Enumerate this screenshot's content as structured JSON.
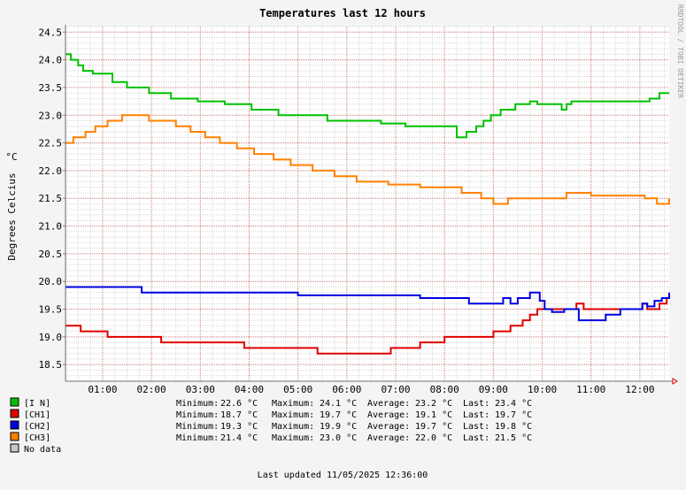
{
  "chart_data": {
    "type": "line",
    "title": "Temperatures last 12 hours",
    "ylabel": "Degrees Celcius",
    "yunit": "°C",
    "watermark": "RRDTOOL / TOBI OETIKER",
    "ylim": [
      18.2,
      24.6
    ],
    "xlim": [
      0.24,
      12.6
    ],
    "yticks": [
      "18.5",
      "19.0",
      "19.5",
      "20.0",
      "20.5",
      "21.0",
      "21.5",
      "22.0",
      "22.5",
      "23.0",
      "23.5",
      "24.0",
      "24.5"
    ],
    "xticks": [
      "01:00",
      "02:00",
      "03:00",
      "04:00",
      "05:00",
      "06:00",
      "07:00",
      "08:00",
      "09:00",
      "10:00",
      "11:00",
      "12:00"
    ],
    "grid": true,
    "series": [
      {
        "name": "[I N]",
        "color": "#00c000",
        "x": [
          0.24,
          0.35,
          0.5,
          0.6,
          0.8,
          1.2,
          1.5,
          1.95,
          2.4,
          2.95,
          3.5,
          4.05,
          4.6,
          5.6,
          6.0,
          6.7,
          7.2,
          7.7,
          8.25,
          8.45,
          8.65,
          8.8,
          8.95,
          9.15,
          9.45,
          9.75,
          9.9,
          10.2,
          10.4,
          10.5,
          10.6,
          12.2,
          12.4,
          12.6
        ],
        "values": [
          24.1,
          24.0,
          23.9,
          23.8,
          23.75,
          23.6,
          23.5,
          23.4,
          23.3,
          23.25,
          23.2,
          23.1,
          23.0,
          22.9,
          22.9,
          22.85,
          22.8,
          22.8,
          22.6,
          22.7,
          22.8,
          22.9,
          23.0,
          23.1,
          23.2,
          23.25,
          23.2,
          23.2,
          23.1,
          23.2,
          23.25,
          23.3,
          23.4,
          23.4
        ]
      },
      {
        "name": "[CH1]",
        "color": "#e00000",
        "x": [
          0.24,
          0.55,
          1.1,
          2.2,
          3.9,
          5.4,
          6.9,
          7.5,
          8.0,
          9.0,
          9.35,
          9.6,
          9.75,
          9.9,
          10.3,
          10.7,
          10.85,
          12.05,
          12.15,
          12.25,
          12.4,
          12.55,
          12.6
        ],
        "values": [
          19.2,
          19.1,
          19.0,
          18.9,
          18.8,
          18.7,
          18.8,
          18.9,
          19.0,
          19.1,
          19.2,
          19.3,
          19.4,
          19.5,
          19.5,
          19.6,
          19.5,
          19.6,
          19.5,
          19.5,
          19.6,
          19.7,
          19.75
        ]
      },
      {
        "name": "[CH2]",
        "color": "#0000e0",
        "x": [
          0.24,
          1.8,
          2.5,
          5.0,
          7.5,
          8.5,
          9.0,
          9.2,
          9.35,
          9.5,
          9.75,
          9.95,
          10.05,
          10.2,
          10.45,
          10.75,
          11.0,
          11.3,
          11.6,
          12.05,
          12.15,
          12.3,
          12.45,
          12.6
        ],
        "values": [
          19.9,
          19.8,
          19.8,
          19.75,
          19.7,
          19.6,
          19.6,
          19.7,
          19.6,
          19.7,
          19.8,
          19.65,
          19.5,
          19.45,
          19.5,
          19.3,
          19.3,
          19.4,
          19.5,
          19.6,
          19.55,
          19.65,
          19.7,
          19.8
        ]
      },
      {
        "name": "[CH3]",
        "color": "#ff8000",
        "x": [
          0.24,
          0.4,
          0.65,
          0.85,
          1.1,
          1.4,
          1.95,
          2.5,
          2.8,
          3.1,
          3.4,
          3.75,
          4.1,
          4.5,
          4.85,
          5.3,
          5.75,
          6.2,
          6.85,
          7.5,
          8.35,
          8.75,
          9.0,
          9.3,
          10.5,
          11.0,
          12.1,
          12.35,
          12.6
        ],
        "values": [
          22.5,
          22.6,
          22.7,
          22.8,
          22.9,
          23.0,
          22.9,
          22.8,
          22.7,
          22.6,
          22.5,
          22.4,
          22.3,
          22.2,
          22.1,
          22.0,
          21.9,
          21.8,
          21.75,
          21.7,
          21.6,
          21.5,
          21.4,
          21.5,
          21.6,
          21.55,
          21.5,
          21.4,
          21.5
        ]
      }
    ],
    "legend": [
      {
        "label": "[I N]",
        "color": "#00c000",
        "min": "22.6 °C",
        "max": "24.1 °C",
        "avg": "23.2 °C",
        "last": "23.4 °C"
      },
      {
        "label": "[CH1]",
        "color": "#e00000",
        "min": "18.7 °C",
        "max": "19.7 °C",
        "avg": "19.1 °C",
        "last": "19.7 °C"
      },
      {
        "label": "[CH2]",
        "color": "#0000e0",
        "min": "19.3 °C",
        "max": "19.9 °C",
        "avg": "19.7 °C",
        "last": "19.8 °C"
      },
      {
        "label": "[CH3]",
        "color": "#ff8000",
        "min": "21.4 °C",
        "max": "23.0 °C",
        "avg": "22.0 °C",
        "last": "21.5 °C"
      },
      {
        "label": "No data",
        "color": "#c8c8c8"
      }
    ],
    "stat_labels": {
      "min": "Minimum:",
      "max": "Maximum:",
      "avg": "Average:",
      "last": "Last:"
    },
    "footer": "Last updated 11/05/2025 12:36:00"
  }
}
